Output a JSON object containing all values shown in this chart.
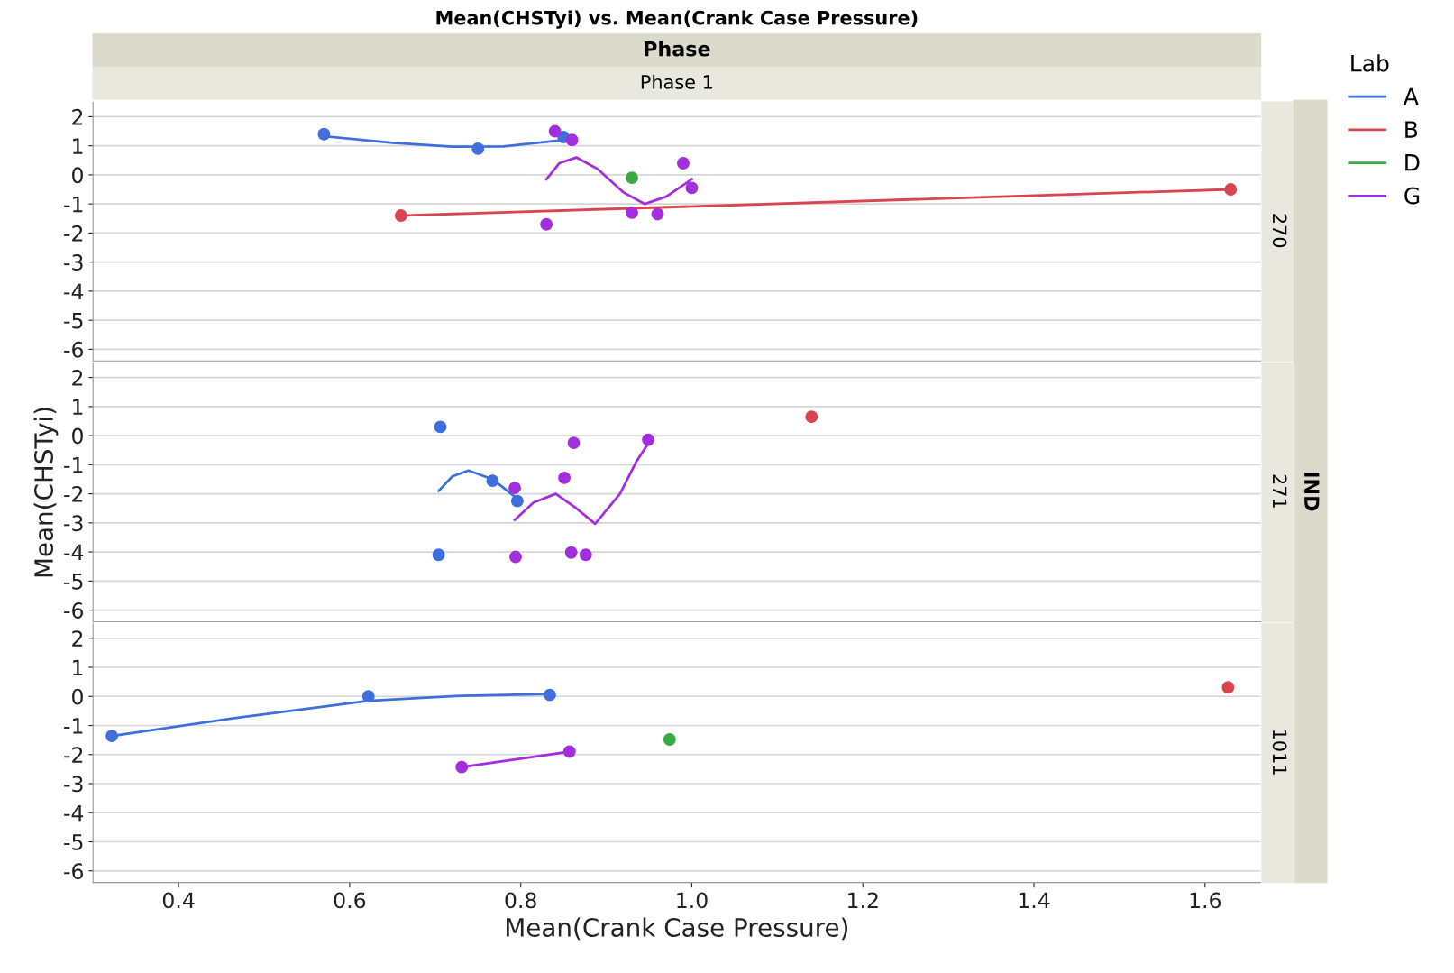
{
  "chart_data": [
    {
      "type": "scatter",
      "title": "Mean(CHSTyi) vs. Mean(Crank Case Pressure)",
      "subtitle": "Phase",
      "legend_title": "Lab",
      "legend": "right",
      "annotations": [
        "Phase 1",
        "IND",
        "270"
      ],
      "marker": "circle",
      "grid": "y",
      "tick_labels": "y",
      "xlim": [
        0.3,
        1.665
      ],
      "ylim": [
        -6.4,
        2.5
      ],
      "yticks": [
        -6,
        -5,
        -4,
        -3,
        -2,
        -1,
        0,
        1,
        2
      ],
      "series": [
        {
          "name": "A",
          "color": "#3f6fdc",
          "x": [
            0.57,
            0.75,
            0.85
          ],
          "values": [
            1.4,
            0.9,
            1.3
          ]
        },
        {
          "name": "B",
          "color": "#d8454f",
          "x": [
            0.66,
            1.63
          ],
          "values": [
            -1.4,
            -0.5
          ]
        },
        {
          "name": "D",
          "color": "#3aaa45",
          "x": [
            0.93
          ],
          "values": [
            -0.1
          ]
        },
        {
          "name": "G",
          "color": "#a32fdc",
          "x": [
            0.84,
            0.86,
            0.83,
            0.93,
            0.96,
            0.99,
            1.0
          ],
          "values": [
            1.5,
            1.2,
            -1.7,
            -1.3,
            -1.35,
            0.4,
            -0.45
          ]
        },
        {
          "type": "line",
          "marker": "none",
          "color": "#3f6fdc",
          "x": [
            0.57,
            0.65,
            0.72,
            0.78,
            0.85
          ],
          "values": [
            1.33,
            1.1,
            0.97,
            0.98,
            1.2
          ]
        },
        {
          "type": "line",
          "marker": "none",
          "color": "#d8454f",
          "x": [
            0.66,
            1.63
          ],
          "values": [
            -1.4,
            -0.5
          ]
        },
        {
          "type": "line",
          "marker": "none",
          "color": "#a32fdc",
          "x": [
            0.83,
            0.845,
            0.865,
            0.89,
            0.92,
            0.945,
            0.97,
            1.0
          ],
          "values": [
            -0.15,
            0.4,
            0.6,
            0.2,
            -0.6,
            -1.0,
            -0.75,
            -0.15
          ]
        }
      ]
    },
    {
      "type": "scatter",
      "ylabel": "Mean(CHSTyi)",
      "annotations": [
        "271"
      ],
      "marker": "circle",
      "grid": "y",
      "tick_labels": "y",
      "xlim": [
        0.3,
        1.665
      ],
      "ylim": [
        -6.4,
        2.5
      ],
      "yticks": [
        -6,
        -5,
        -4,
        -3,
        -2,
        -1,
        0,
        1,
        2
      ],
      "series": [
        {
          "color": "#3f6fdc",
          "x": [
            0.706,
            0.767,
            0.796,
            0.704
          ],
          "values": [
            0.3,
            -1.55,
            -2.25,
            -4.1
          ]
        },
        {
          "color": "#d8454f",
          "x": [
            1.14
          ],
          "values": [
            0.65
          ]
        },
        {
          "color": "#a32fdc",
          "x": [
            0.793,
            0.862,
            0.851,
            0.949,
            0.794,
            0.859,
            0.876
          ],
          "values": [
            -1.8,
            -0.25,
            -1.45,
            -0.14,
            -4.17,
            -4.02,
            -4.1
          ]
        },
        {
          "type": "line",
          "marker": "none",
          "color": "#3f6fdc",
          "x": [
            0.704,
            0.72,
            0.739,
            0.767,
            0.793
          ],
          "values": [
            -1.9,
            -1.4,
            -1.2,
            -1.5,
            -2.1
          ]
        },
        {
          "type": "line",
          "marker": "none",
          "color": "#a32fdc",
          "x": [
            0.793,
            0.815,
            0.841,
            0.865,
            0.887,
            0.916,
            0.935,
            0.949
          ],
          "values": [
            -2.9,
            -2.3,
            -2.0,
            -2.5,
            -3.03,
            -2.0,
            -0.9,
            -0.27
          ]
        }
      ]
    },
    {
      "type": "scatter",
      "xlabel": "Mean(Crank Case Pressure)",
      "annotations": [
        "1011"
      ],
      "marker": "circle",
      "grid": "y",
      "xlim": [
        0.3,
        1.665
      ],
      "xticks": [
        0.4,
        0.6,
        0.8,
        {
          "value": 1.0,
          "label": "1.0"
        },
        1.2,
        1.4,
        1.6
      ],
      "ylim": [
        -6.4,
        2.5
      ],
      "yticks": [
        -6,
        -5,
        -4,
        -3,
        -2,
        -1,
        0,
        1,
        2
      ],
      "series": [
        {
          "color": "#3f6fdc",
          "x": [
            0.322,
            0.622,
            0.834
          ],
          "values": [
            -1.36,
            0.0,
            0.05
          ]
        },
        {
          "color": "#d8454f",
          "x": [
            1.627
          ],
          "values": [
            0.31
          ]
        },
        {
          "color": "#3aaa45",
          "x": [
            0.974
          ],
          "values": [
            -1.48
          ]
        },
        {
          "color": "#a32fdc",
          "x": [
            0.731,
            0.857
          ],
          "values": [
            -2.43,
            -1.9
          ]
        },
        {
          "type": "line",
          "marker": "none",
          "color": "#3f6fdc",
          "x": [
            0.322,
            0.469,
            0.622,
            0.73,
            0.834
          ],
          "values": [
            -1.36,
            -0.73,
            -0.15,
            0.02,
            0.08
          ]
        },
        {
          "type": "line",
          "marker": "none",
          "color": "#a32fdc",
          "x": [
            0.731,
            0.857
          ],
          "values": [
            -2.43,
            -1.9
          ]
        }
      ]
    }
  ]
}
